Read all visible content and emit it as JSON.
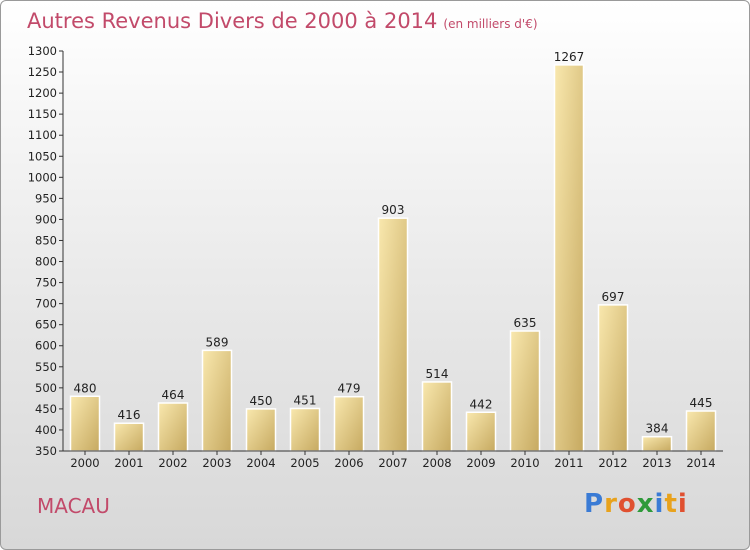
{
  "header": {
    "title": "Autres Revenus Divers de 2000 à 2014",
    "subtitle": "(en milliers d'€)"
  },
  "footer": {
    "city": "MACAU",
    "logo_letters": [
      "P",
      "r",
      "o",
      "x",
      "i",
      "t",
      "i"
    ],
    "logo_colors": [
      "#3a7bd5",
      "#e8a21c",
      "#e05030",
      "#2e9a3a",
      "#3a7bd5",
      "#e8a21c",
      "#e05030"
    ]
  },
  "colors": {
    "bar_light": "#f7e3a2",
    "bar_dark": "#c8ab62",
    "axis": "#333333",
    "text_accent": "#c24a6a"
  },
  "chart_data": {
    "type": "bar",
    "title": "Autres Revenus Divers de 2000 à 2014",
    "categories": [
      "2000",
      "2001",
      "2002",
      "2003",
      "2004",
      "2005",
      "2006",
      "2007",
      "2008",
      "2009",
      "2010",
      "2011",
      "2012",
      "2013",
      "2014"
    ],
    "values": [
      480,
      416,
      464,
      589,
      450,
      451,
      479,
      903,
      514,
      442,
      635,
      1267,
      697,
      384,
      445
    ],
    "ylim": [
      350,
      1300
    ],
    "yticks": [
      350,
      400,
      450,
      500,
      550,
      600,
      650,
      700,
      750,
      800,
      850,
      900,
      950,
      1000,
      1050,
      1100,
      1150,
      1200,
      1250,
      1300
    ],
    "grid": false,
    "legend": "none"
  }
}
